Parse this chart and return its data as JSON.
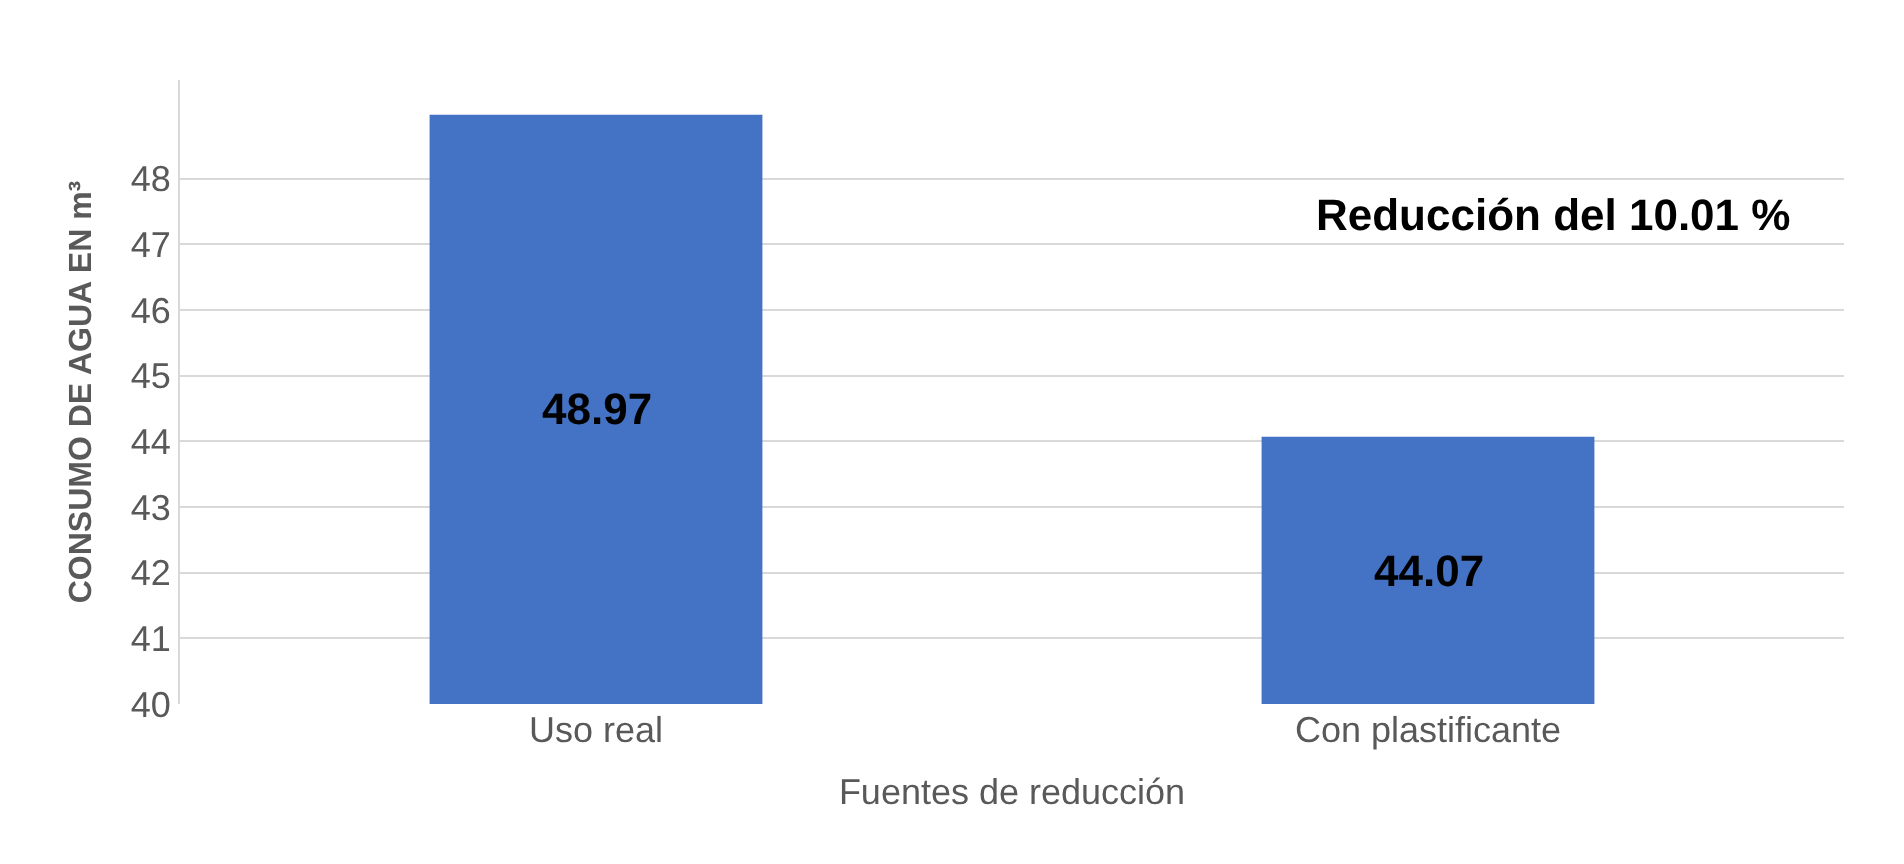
{
  "chart_data": {
    "type": "bar",
    "categories": [
      "Uso real",
      "Con plastificante"
    ],
    "values": [
      48.97,
      44.07
    ],
    "color": "#4472c4",
    "xlabel": "Fuentes de reducción",
    "ylabel": "CONSUMO DE AGUA EN m³",
    "ylim": [
      40,
      49.5
    ],
    "yticks": [
      40,
      41,
      42,
      43,
      44,
      45,
      46,
      47,
      48
    ],
    "grid": "y",
    "data_labels": true,
    "annotations": [
      "Reducción del 10.01 %"
    ]
  }
}
